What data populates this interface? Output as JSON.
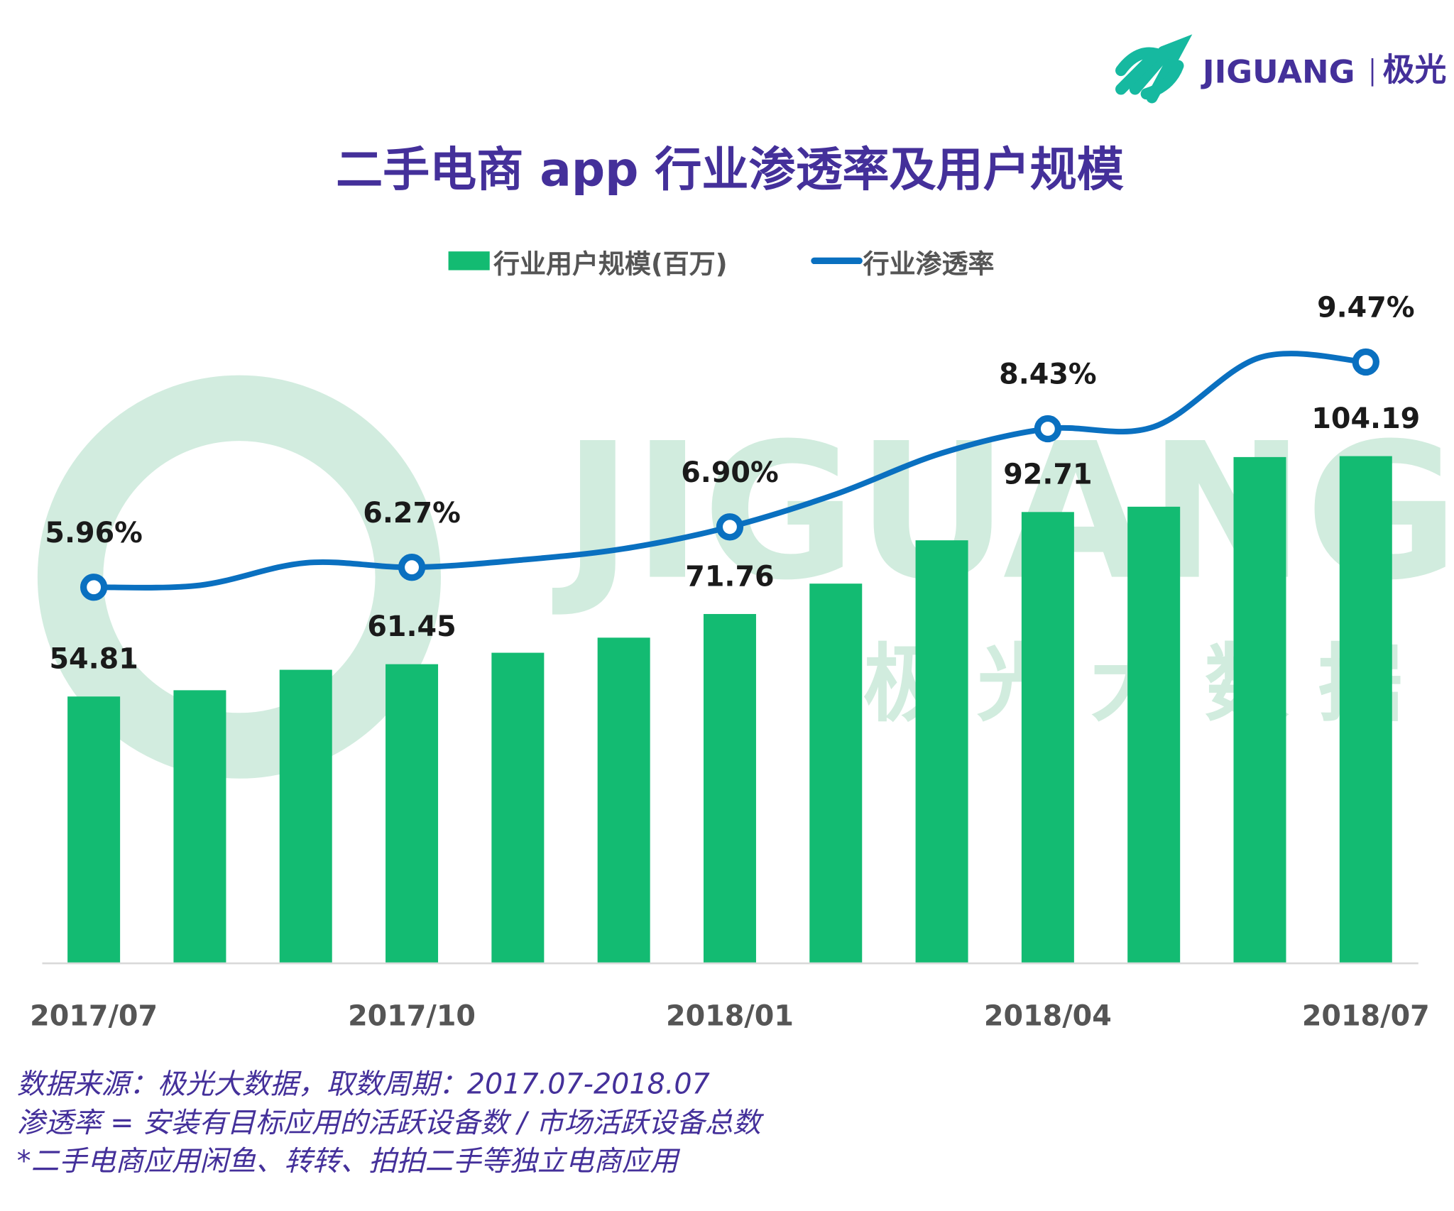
{
  "brand": {
    "name": "JIGUANG",
    "cn": "极光",
    "logo_color": "#16b9a0"
  },
  "watermark": {
    "text": "JIGUANG",
    "cn": "极 光 大 数 据"
  },
  "chart_data": {
    "type": "bar+line",
    "title": "二手电商 app 行业渗透率及用户规模",
    "legend_position": "top",
    "categories": [
      "2017/07",
      "2017/08",
      "2017/09",
      "2017/10",
      "2017/11",
      "2017/12",
      "2018/01",
      "2018/02",
      "2018/03",
      "2018/04",
      "2018/05",
      "2018/06",
      "2018/07"
    ],
    "tick_labels": [
      "2017/07",
      "2017/10",
      "2018/01",
      "2018/04",
      "2018/07"
    ],
    "series": [
      {
        "name": "行业用户规模(百万)",
        "type": "bar",
        "color": "#13bb72",
        "values": [
          54.81,
          56.1,
          60.3,
          61.45,
          63.8,
          66.9,
          71.76,
          78.0,
          86.9,
          92.71,
          93.8,
          104.0,
          104.19
        ],
        "labels": [
          "54.81",
          null,
          null,
          "61.45",
          null,
          null,
          "71.76",
          null,
          null,
          "92.71",
          null,
          null,
          "104.19"
        ]
      },
      {
        "name": "行业渗透率",
        "type": "line",
        "color": "#0a70c0",
        "unit": "%",
        "values": [
          5.96,
          5.99,
          6.34,
          6.27,
          6.38,
          6.56,
          6.9,
          7.41,
          8.05,
          8.43,
          8.46,
          9.54,
          9.47
        ],
        "labels": [
          "5.96%",
          null,
          null,
          "6.27%",
          null,
          null,
          "6.90%",
          null,
          null,
          "8.43%",
          null,
          null,
          "9.47%"
        ]
      }
    ],
    "grid": false
  },
  "footnotes": [
    "数据来源：极光大数据，取数周期：2017.07-2018.07",
    "渗透率 = 安装有目标应用的活跃设备数 / 市场活跃设备总数",
    " *二手电商应用闲鱼、转转、拍拍二手等独立电商应用"
  ]
}
